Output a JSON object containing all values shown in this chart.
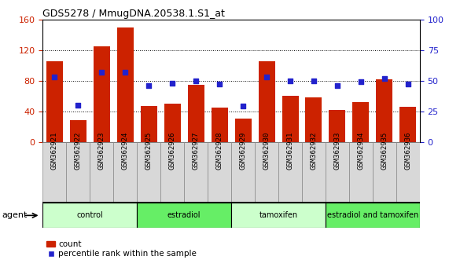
{
  "title": "GDS5278 / MmugDNA.20538.1.S1_at",
  "samples": [
    "GSM362921",
    "GSM362922",
    "GSM362923",
    "GSM362924",
    "GSM362925",
    "GSM362926",
    "GSM362927",
    "GSM362928",
    "GSM362929",
    "GSM362930",
    "GSM362931",
    "GSM362932",
    "GSM362933",
    "GSM362934",
    "GSM362935",
    "GSM362936"
  ],
  "counts": [
    105,
    28,
    125,
    150,
    47,
    50,
    75,
    45,
    30,
    105,
    60,
    58,
    42,
    52,
    82,
    46
  ],
  "percentiles": [
    53,
    30,
    57,
    57,
    46,
    48,
    50,
    47,
    29,
    53,
    50,
    50,
    46,
    49,
    52,
    47
  ],
  "groups": [
    {
      "label": "control",
      "start": 0,
      "end": 4,
      "color": "#ccffcc"
    },
    {
      "label": "estradiol",
      "start": 4,
      "end": 8,
      "color": "#66ee66"
    },
    {
      "label": "tamoxifen",
      "start": 8,
      "end": 12,
      "color": "#ccffcc"
    },
    {
      "label": "estradiol and tamoxifen",
      "start": 12,
      "end": 16,
      "color": "#66ee66"
    }
  ],
  "bar_color": "#cc2200",
  "dot_color": "#2222cc",
  "ylim_left": [
    0,
    160
  ],
  "ylim_right": [
    0,
    100
  ],
  "yticks_left": [
    0,
    40,
    80,
    120,
    160
  ],
  "yticks_right": [
    0,
    25,
    50,
    75,
    100
  ],
  "agent_label": "agent",
  "legend_count": "count",
  "legend_percentile": "percentile rank within the sample",
  "bar_width": 0.7,
  "background_color": "#ffffff",
  "gray_box_color": "#d8d8d8",
  "tick_label_fontsize": 6.5,
  "title_fontsize": 9
}
